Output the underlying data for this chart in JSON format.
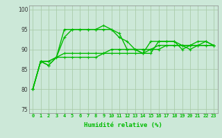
{
  "title": "",
  "xlabel": "Humidité relative (%)",
  "ylabel": "",
  "bg_color": "#cce8d8",
  "grid_color": "#aaccaa",
  "line_color": "#00bb00",
  "xlim": [
    -0.5,
    23.5
  ],
  "ylim": [
    74,
    101
  ],
  "yticks": [
    75,
    80,
    85,
    90,
    95,
    100
  ],
  "xticks": [
    0,
    1,
    2,
    3,
    4,
    5,
    6,
    7,
    8,
    9,
    10,
    11,
    12,
    13,
    14,
    15,
    16,
    17,
    18,
    19,
    20,
    21,
    22,
    23
  ],
  "series": [
    [
      80,
      87,
      86,
      88,
      95,
      95,
      95,
      95,
      95,
      96,
      95,
      93,
      92,
      90,
      89,
      92,
      92,
      92,
      92,
      90,
      91,
      92,
      92,
      91
    ],
    [
      80,
      87,
      86,
      88,
      93,
      95,
      95,
      95,
      95,
      95,
      95,
      94,
      90,
      90,
      89,
      89,
      92,
      92,
      92,
      91,
      90,
      91,
      92,
      91
    ],
    [
      80,
      87,
      87,
      88,
      89,
      89,
      89,
      89,
      89,
      89,
      90,
      90,
      90,
      90,
      90,
      90,
      91,
      91,
      91,
      91,
      91,
      91,
      91,
      91
    ],
    [
      80,
      87,
      87,
      88,
      88,
      88,
      88,
      88,
      88,
      89,
      89,
      89,
      89,
      89,
      89,
      90,
      90,
      91,
      91,
      91,
      91,
      91,
      91,
      91
    ]
  ]
}
